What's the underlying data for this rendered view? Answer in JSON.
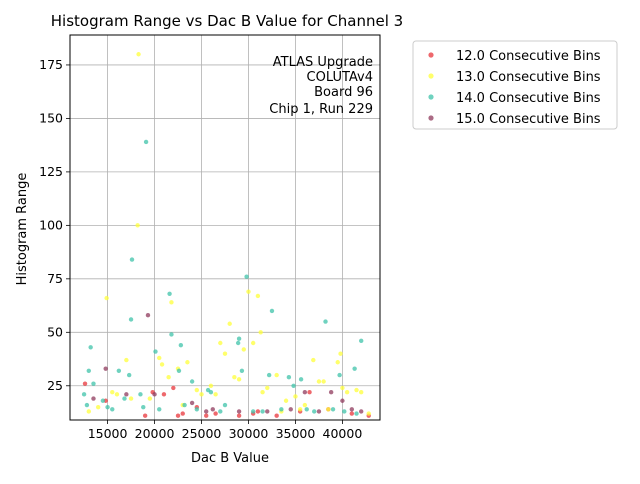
{
  "chart_data": {
    "type": "scatter",
    "title": "Histogram Range vs Dac B Value for Channel 3",
    "xlabel": "Dac B Value",
    "ylabel": "Histogram Range",
    "xlim": [
      11000,
      44000
    ],
    "ylim": [
      9,
      189
    ],
    "xticks": [
      15000,
      20000,
      25000,
      30000,
      35000,
      40000
    ],
    "yticks": [
      25,
      50,
      75,
      100,
      125,
      150,
      175
    ],
    "grid": true,
    "legend_position": "outside-right",
    "annotation": [
      "ATLAS Upgrade",
      "COLUTAv4",
      "Board 96",
      "Chip 1, Run 229"
    ],
    "series": [
      {
        "name": "12.0 Consecutive Bins",
        "color": "#e8363b",
        "x": [
          12600,
          14800,
          19000,
          19800,
          21000,
          22000,
          23000,
          25500,
          26500,
          29000,
          31000,
          33000,
          35500,
          38500,
          41000,
          42800,
          24500,
          36500,
          30500,
          22500
        ],
        "y": [
          26,
          18,
          11,
          22,
          21,
          24,
          12,
          11,
          12,
          11,
          13,
          11,
          13,
          14,
          12,
          11,
          15,
          22,
          12,
          11
        ]
      },
      {
        "name": "13.0 Consecutive Bins",
        "color": "#ffff3a",
        "x": [
          18300,
          18200,
          14900,
          17000,
          21800,
          28000,
          27000,
          29500,
          30000,
          31000,
          31300,
          30500,
          36900,
          39500,
          39800,
          40500,
          41500,
          38000,
          35000,
          33000,
          16000,
          15500,
          19500,
          20500,
          21500,
          23500,
          24500,
          26000,
          28500,
          32000,
          34000,
          37500,
          40000,
          42000,
          13000,
          14000,
          17500,
          22500,
          25000,
          27500,
          29000,
          33500,
          36000,
          38500,
          42800,
          26500,
          31500,
          35500,
          20800,
          23000
        ],
        "y": [
          180,
          100,
          66,
          37,
          64,
          54,
          45,
          42,
          69,
          67,
          50,
          45,
          37,
          36,
          40,
          22,
          23,
          27,
          20,
          30,
          21,
          22,
          19,
          38,
          29,
          36,
          23,
          25,
          29,
          24,
          18,
          27,
          24,
          22,
          13,
          15,
          19,
          33,
          21,
          40,
          28,
          13,
          16,
          14,
          12,
          21,
          22,
          14,
          35,
          16
        ]
      },
      {
        "name": "14.0 Consecutive Bins",
        "color": "#3fc3a9",
        "x": [
          19100,
          17600,
          17500,
          21600,
          21800,
          22800,
          20100,
          29800,
          32500,
          38200,
          42000,
          41300,
          39700,
          35600,
          34300,
          32200,
          29300,
          29000,
          28900,
          26000,
          24000,
          16200,
          13200,
          13000,
          13500,
          15500,
          18500,
          15000,
          16800,
          14500,
          12500,
          22600,
          25700,
          27000,
          30500,
          36200,
          39000,
          40200,
          41500,
          33500,
          23200,
          20500,
          17300,
          18800,
          31500,
          37000,
          34800,
          12800,
          27500,
          24500
        ],
        "y": [
          139,
          84,
          56,
          68,
          49,
          44,
          41,
          76,
          60,
          55,
          46,
          33,
          30,
          28,
          29,
          30,
          32,
          47,
          45,
          22,
          27,
          32,
          43,
          32,
          26,
          14,
          21,
          15,
          19,
          18,
          21,
          32,
          23,
          13,
          13,
          14,
          14,
          13,
          12,
          14,
          16,
          14,
          30,
          15,
          13,
          13,
          25,
          16,
          16,
          14
        ]
      },
      {
        "name": "15.0 Consecutive Bins",
        "color": "#8f3a5c",
        "x": [
          19300,
          14800,
          20000,
          13500,
          25500,
          26200,
          29000,
          32000,
          34500,
          37500,
          38800,
          41000,
          42000,
          36000,
          24000,
          17000,
          40000
        ],
        "y": [
          58,
          33,
          21,
          19,
          13,
          14,
          13,
          13,
          14,
          13,
          22,
          14,
          13,
          22,
          17,
          21,
          18
        ]
      }
    ]
  }
}
